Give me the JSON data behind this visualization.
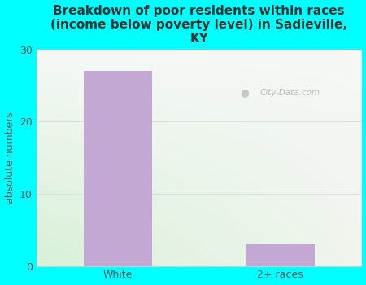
{
  "title": "Breakdown of poor residents within races\n(income below poverty level) in Sadieville,\nKY",
  "categories": [
    "White",
    "2+ races"
  ],
  "values": [
    27,
    3
  ],
  "bar_color": "#c4a8d4",
  "ylabel": "absolute numbers",
  "ylim": [
    0,
    30
  ],
  "yticks": [
    0,
    10,
    20,
    30
  ],
  "background_outer": "#00ffff",
  "title_color": "#333333",
  "axis_color": "#555555",
  "title_fontsize": 11,
  "ylabel_fontsize": 9,
  "tick_fontsize": 9,
  "watermark_text": "City-Data.com",
  "grid_color": "#dddddd"
}
